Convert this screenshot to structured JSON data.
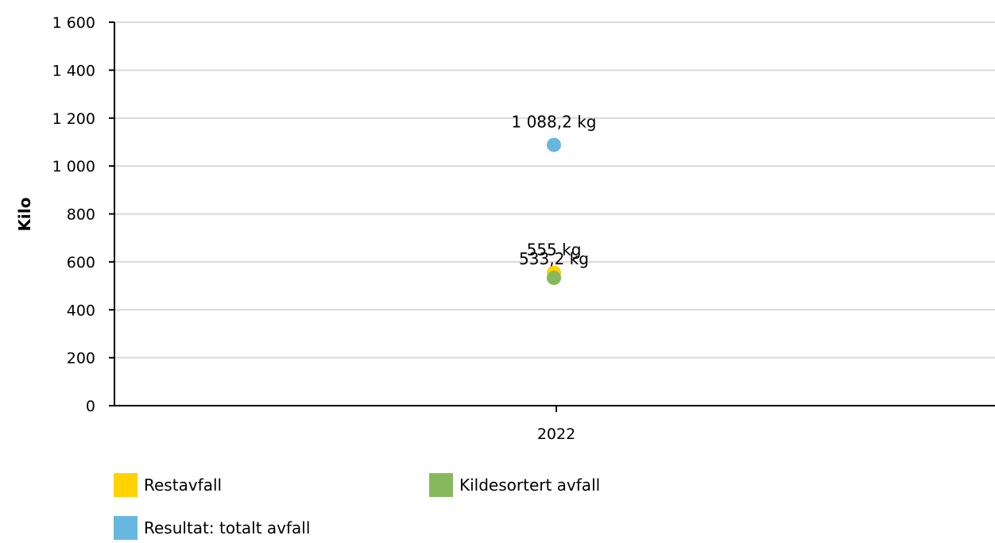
{
  "chart_data": {
    "type": "scatter",
    "categories": [
      "2022"
    ],
    "ylabel": "Kilo",
    "xlabel": "",
    "ylim": [
      0,
      1600
    ],
    "yticks": [
      {
        "value": 0,
        "label": "0"
      },
      {
        "value": 200,
        "label": "200"
      },
      {
        "value": 400,
        "label": "400"
      },
      {
        "value": 600,
        "label": "600"
      },
      {
        "value": 800,
        "label": "800"
      },
      {
        "value": 1000,
        "label": "1 000"
      },
      {
        "value": 1200,
        "label": "1 200"
      },
      {
        "value": 1400,
        "label": "1 400"
      },
      {
        "value": 1600,
        "label": "1 600"
      }
    ],
    "grid": true,
    "legend_position": "bottom",
    "series": [
      {
        "name": "Restavfall",
        "color": "#ffd200",
        "values": [
          555
        ],
        "labels": [
          "555 kg"
        ]
      },
      {
        "name": "Kildesortert avfall",
        "color": "#86b95d",
        "values": [
          533.2
        ],
        "labels": [
          "533,2 kg"
        ]
      },
      {
        "name": "Resultat: totalt avfall",
        "color": "#66b8e0",
        "values": [
          1088.2
        ],
        "labels": [
          "1 088,2 kg"
        ]
      }
    ]
  }
}
